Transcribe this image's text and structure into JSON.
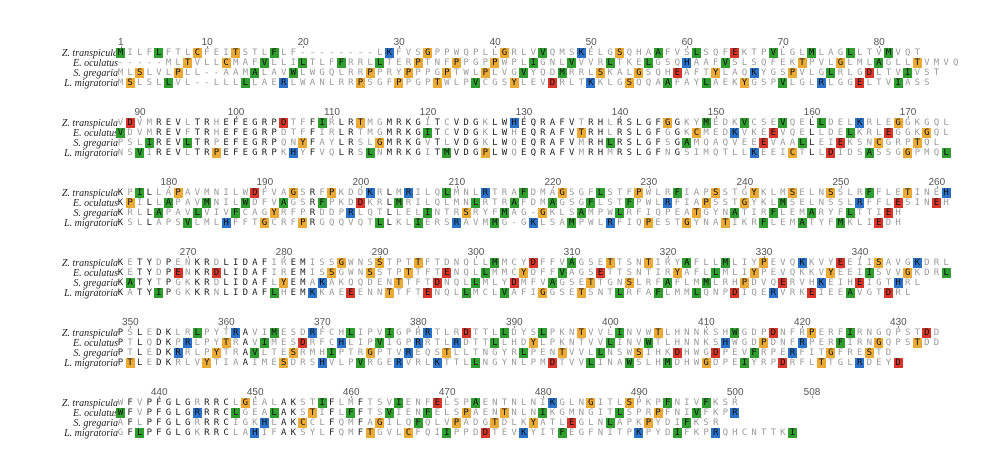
{
  "alignment": {
    "species": [
      "Z. transpicula",
      "E. oculatus",
      "S. gregaria",
      "L. migratoria"
    ],
    "blocks": [
      {
        "start": 1,
        "ticks": [
          "1",
          "10",
          "20",
          "30",
          "40",
          "50",
          "60",
          "70",
          "80"
        ],
        "rows": [
          "MILFLFTLCFEITSTLFLF--------LKFVSGPPWQPLLGRLVVQMSKELGSQHAAFVSLSQFEKTPVLGLMLAGLLTVMVQT",
          "-----MLTVLLCMAFVLLILTLFFRRLLTERPTNFPPGPPWPLIGNLVVVRLTKELGSQHAAFVSLSQFEKTPVLGLMLAGLLTVMVQT",
          "MLSLVLPLL--AAMALAVWLWGQLRRPPRYPPPGPTWLPLVGVYQDMRRLSKALGSQHEAFTYLAQKYGSPVLGLRLGDLTVIVST",
          "MSLSLLVL--LLLLLAERLWANLRRPSGFPPGPTWLPVCGSYLEVDRLTKKLGSQQAAFAYLAEKYGSPVLGLRLGGELTVIASS"
        ]
      },
      {
        "start": 88,
        "ticks": [
          "90",
          "100",
          "110",
          "120",
          "130",
          "140",
          "150",
          "160",
          "170"
        ],
        "rows": [
          "VDVMREVLTRHEFEGRPDTFFIRLRTMGMRKGITCVDGKLWHEQRAFVTRHLRSLGFGGKYMEDKVCSEVQELLDELKRLEGGKGQL",
          "VDVMREVFTRHEFEGRPDTFFIRLRTMGMRKGITCVDGKLWHEQRAFVTRHLRSLGFGGKCMEDKVKEEVQELLDELKRLEGGKGQL",
          "PSLIREVLTRPEFEGRPQNYFAYLRSLGMRKGVTLVDGKLWQEQRAFVMRHLRSLGFSGAMQAQVEEEVAALLEIEKSNCGRPTQL",
          "NSVIREVLTRPEFEGRPKHYFVQLRSLNMRKGITMVDGPLWQEQRAFVMRHMRSLGFNGSIMQTLLKEEICTLLDIDSASSGGPMQL"
        ]
      },
      {
        "start": 175,
        "ticks": [
          "180",
          "190",
          "200",
          "210",
          "220",
          "230",
          "240",
          "250",
          "260"
        ],
        "rows": [
          "KPILLAPAVMNILWDFVAGSRFPKDDKRLMRILQLMNLRTRAFDMAGSGFLSTFPWLRFIAPSSTGYKLMSELNSSLRFFLETINEH",
          "KPILLAPAVMNILWDFVAGSRFPKDDKRLMRILQLMNLRTRAFDMAGSGFLSTFPWLRFIAPSSTGYKLMSELNSSLRFFLESINEH",
          "KRLLAPAVLVIVFCAGYRFPRDDPRLQTLLELINTRSRYFMAG-GKLSAMPWLRFIQPEATGYNATIRFLEMARYFLTTIEH",
          "KSLLAPSVLMLHFFTGCRFPRGQQVQTLLKLIERSRAVMMG-GKLSAMPWLRFIQPESTGYNATIKRFLEMATYFMKLIEDH"
        ]
      },
      {
        "start": 263,
        "ticks": [
          "270",
          "280",
          "290",
          "300",
          "310",
          "320",
          "330",
          "340"
        ],
        "rows": [
          "KETYDPENKRDLIDAFIREMISSGWNSSTPTTFTDNQLLMMCYDFFVAGSETTSNTIRYAFLLMLIYPEVQKKVYEEIISAVGKDRL",
          "KETYDPENKRDLIDAFIREMISSGWNSSTPTTFTENQLLMMCYDFFVAGSETTSNTIRYAFLLMLIYPEVQKKVYEEIISVVGKDRL",
          "KATYTPGKKRDLIDAFLYEMAKAKQQDENTTFTDNQLLMLYDMFVAGSETTGNSLRFAFLMMLRHPDVQERVHKEIHEIGTHRL",
          "KATYIPGKKRNLIDAFLHEMKKAEEENNTTFTENQLLMCLVAFIGGSETSNTLRFAFLMMLQNPDIQERVRKEIEEAVGTDRL"
        ]
      },
      {
        "start": 349,
        "ticks": [
          "350",
          "360",
          "370",
          "380",
          "390",
          "400",
          "410",
          "420",
          "430"
        ],
        "rows": [
          "PSLEDKLRLPYTRAVIMESDRFCHLIPVIGPRRTLRDTTLLDYSLPKNTVVLINVWTLHNNKSHWGDPDNFRPERFIRNGQPSTDD",
          "PTLQDKPRLPYTRAVIMESDRFCHLIPVIGPRRTLRDTTLLHDYLPKNTVVLINVWTLHNNKSHWGDPDNFRPERFIRNGQPSTDD",
          "PTLEDKRRLPYTRAVLTESRMHIPTRGPTVREQSTLLTNGYRLPENTVVLLNSWSIHKDHWGDPEVFRPERFITGFRESTD",
          "PTLEDKRLVYTIAAIMESDRSHVLPVRGERVRLKTTLLNGYNLPMDTVVLINAWSLHMDHWGDPEIYRPDRFLTTGLRDEYD"
        ]
      },
      {
        "start": 436,
        "ticks": [
          "440",
          "450",
          "460",
          "470",
          "480",
          "490",
          "500",
          "508"
        ],
        "rows": [
          "WFVPFGLGRRRCLGEALAKSTIFLMFTSVIENFELSPAENTNLNIKGLNGITLSPKPFNIVFKSR",
          "WFVPFGLGRRRCLGEALAKSTIFLFFTSVIENFELSPAENTNLNIKGMNGITLSPRPFNIVFKPR",
          "AFLPFGLGRRRCIGKHLAKCCLFQMFAGILQFQLVPADGTDLKYATLEGLNLAPKPYDIFKSR",
          "GFLPFGLGKRRCLAHIFAKSYLFQMFTGVLCFQIIPPDDTEVKYITFEGFNITPKPYDIFKPRQHCNTTKI"
        ]
      }
    ]
  },
  "colors": {
    "hydrophobic": "#2f9e2f",
    "basic": "#2a72c9",
    "acidic": "#d8362a",
    "special": "#eba935",
    "neutral": "#b4b4b4"
  }
}
